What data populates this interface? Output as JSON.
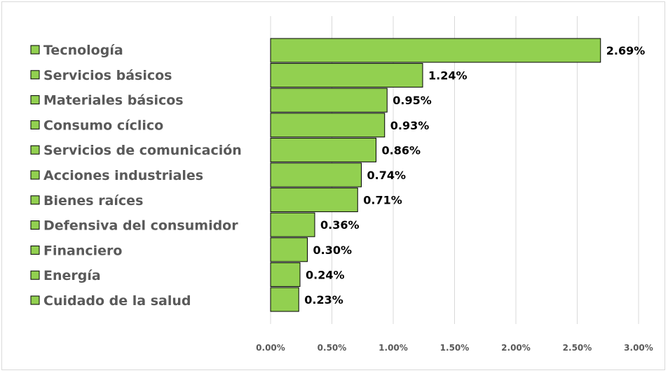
{
  "chart_data": {
    "type": "bar",
    "orientation": "horizontal",
    "title": "",
    "xlabel": "",
    "ylabel": "",
    "categories": [
      "Tecnología",
      "Servicios básicos",
      "Materiales básicos",
      "Consumo cíclico",
      "Servicios de comunicación",
      "Acciones industriales",
      "Bienes raíces",
      "Defensiva del consumidor",
      "Financiero",
      "Energía",
      "Cuidado de la salud"
    ],
    "values": [
      2.69,
      1.24,
      0.95,
      0.93,
      0.86,
      0.74,
      0.71,
      0.36,
      0.3,
      0.24,
      0.23
    ],
    "value_labels": [
      "2.69%",
      "1.24%",
      "0.95%",
      "0.93%",
      "0.86%",
      "0.74%",
      "0.71%",
      "0.36%",
      "0.30%",
      "0.24%",
      "0.23%"
    ],
    "xlim": [
      0,
      3
    ],
    "xticks": [
      0,
      0.5,
      1,
      1.5,
      2,
      2.5,
      3
    ],
    "xtick_labels": [
      "0.00%",
      "0.50%",
      "1.00%",
      "1.50%",
      "2.00%",
      "2.50%",
      "3.00%"
    ],
    "grid": "vertical",
    "legend": "left",
    "colors": {
      "bar": "#92d050",
      "bar_stroke": "#000000",
      "grid": "#d9d9d9"
    }
  }
}
